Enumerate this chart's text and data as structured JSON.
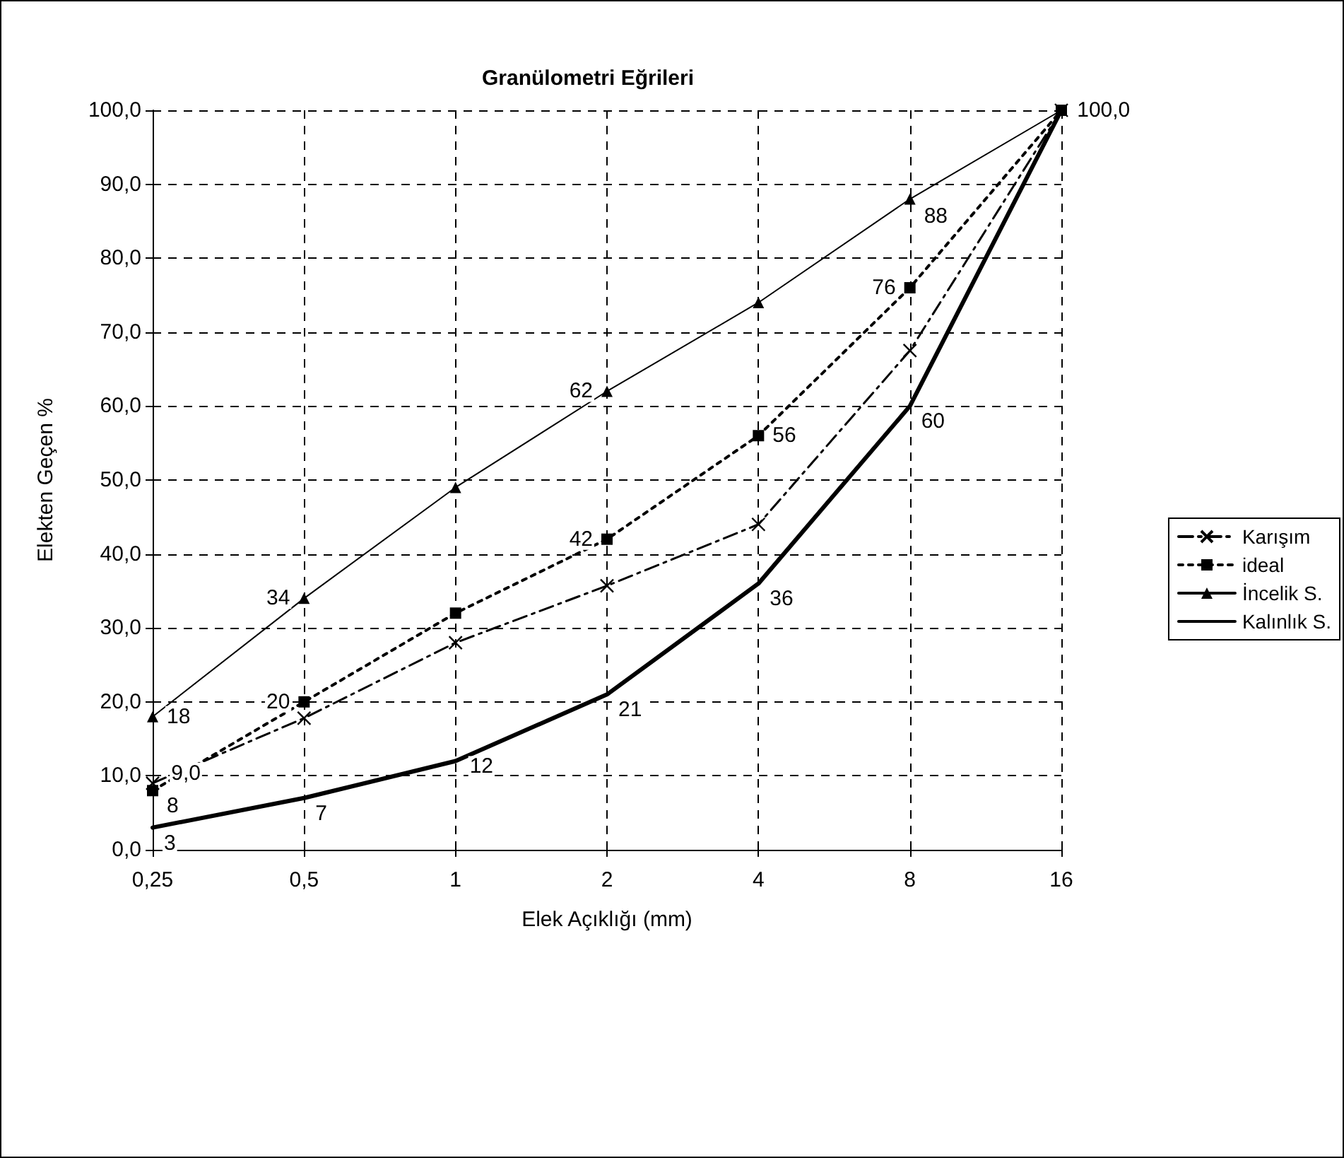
{
  "chart_data": {
    "type": "line",
    "title": "Granülometri Eğrileri",
    "xlabel": "Elek Açıklığı (mm)",
    "ylabel": "Elekten Geçen %",
    "categories": [
      "0,25",
      "0,5",
      "1",
      "2",
      "4",
      "8",
      "16"
    ],
    "ylim": [
      0,
      100
    ],
    "yticks": [
      {
        "value": 0,
        "label": "0,0"
      },
      {
        "value": 10,
        "label": "10,0"
      },
      {
        "value": 20,
        "label": "20,0"
      },
      {
        "value": 30,
        "label": "30,0"
      },
      {
        "value": 40,
        "label": "40,0"
      },
      {
        "value": 50,
        "label": "50,0"
      },
      {
        "value": 60,
        "label": "60,0"
      },
      {
        "value": 70,
        "label": "70,0"
      },
      {
        "value": 80,
        "label": "80,0"
      },
      {
        "value": 90,
        "label": "90,0"
      },
      {
        "value": 100,
        "label": "100,0"
      }
    ],
    "grid": true,
    "legend": "right",
    "series": [
      {
        "name": "Karışım",
        "color": "#000000",
        "marker": "cross",
        "line_style": "dashed",
        "values": [
          9,
          17.8,
          28,
          35.7,
          44,
          67.5,
          100
        ],
        "value_labels": [
          "9,0",
          null,
          null,
          null,
          null,
          null,
          "100,0"
        ]
      },
      {
        "name": "ideal",
        "color": "#000000",
        "marker": "square",
        "line_style": "dotted",
        "values": [
          8,
          20,
          32,
          42,
          56,
          76,
          100
        ],
        "value_labels": [
          "8",
          "20",
          null,
          "42",
          "56",
          "76",
          null
        ]
      },
      {
        "name": "İncelik S.",
        "color": "#000000",
        "marker": "triangle",
        "line_style": "solid",
        "values": [
          18,
          34,
          49,
          62,
          74,
          88,
          100
        ],
        "value_labels": [
          "18",
          "34",
          null,
          "62",
          null,
          "88",
          null
        ]
      },
      {
        "name": "Kalınlık S.",
        "color": "#000000",
        "marker": "none",
        "line_style": "solid",
        "values": [
          3,
          7,
          12,
          21,
          36,
          60,
          100
        ],
        "value_labels": [
          "3",
          "7",
          "12",
          "21",
          "36",
          "60",
          null
        ]
      }
    ]
  }
}
